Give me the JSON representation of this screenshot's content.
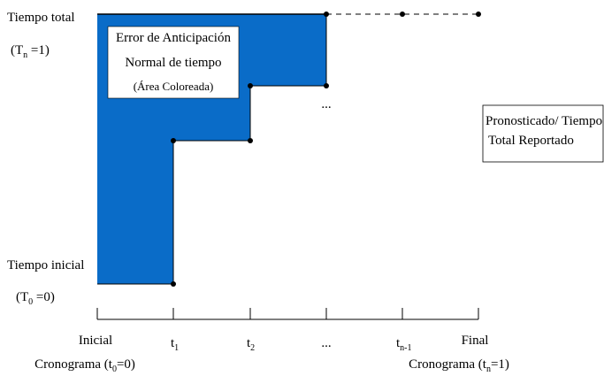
{
  "labels": {
    "total_time": "Tiempo total",
    "total_time_cond": {
      "open": "(T",
      "sub": "n",
      "close": " =1)"
    },
    "initial_time": "Tiempo inicial",
    "initial_time_cond": {
      "open": "(T",
      "sub": "0",
      "close": " =0)"
    },
    "ellipsis_mid": "...",
    "box_line1": "Error de Anticipación",
    "box_line2": "Normal de tiempo",
    "box_line3": "(Área Coloreada)",
    "legend_line1": "Pronosticado/ Tiempo",
    "legend_line2": "Total Reportado"
  },
  "axis": {
    "start_line1": "Inicial",
    "start_line2": {
      "open": "Cronograma (t",
      "sub": "0",
      "close": "=0)"
    },
    "t1": {
      "base": "t",
      "sub": "1"
    },
    "t2": {
      "base": "t",
      "sub": "2"
    },
    "dots": "...",
    "tn1": {
      "base": "t",
      "sub": "n-1"
    },
    "end_line1": "Final",
    "end_line2": {
      "open": "Cronograma (t",
      "sub": "n",
      "close": "=1)"
    }
  },
  "colors": {
    "fill": "#0a6cc8",
    "line": "#000000",
    "box_bg": "#ffffff"
  }
}
